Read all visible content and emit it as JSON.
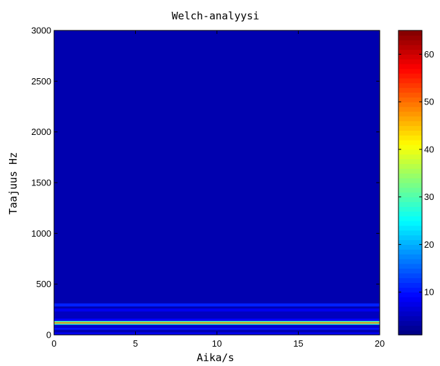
{
  "chart_data": {
    "type": "heatmap",
    "title": "Welch-analyysi",
    "xlabel": "Aika/s",
    "ylabel": "Taajuus Hz",
    "xlim": [
      0,
      20
    ],
    "ylim": [
      0,
      3000
    ],
    "x_ticks": [
      0,
      5,
      10,
      15,
      20
    ],
    "y_ticks": [
      0,
      500,
      1000,
      1500,
      2000,
      2500,
      3000
    ],
    "colormap": "jet",
    "colorbar": {
      "range": [
        1,
        65
      ],
      "ticks": [
        10,
        20,
        30,
        40,
        50,
        60
      ]
    },
    "background_level": 4,
    "frequency_bands": [
      {
        "freq_range": [
          0,
          25
        ],
        "level": 8
      },
      {
        "freq_range": [
          50,
          70
        ],
        "level": 10
      },
      {
        "freq_range": [
          70,
          100
        ],
        "level": 6
      },
      {
        "freq_range": [
          100,
          112
        ],
        "level": 28
      },
      {
        "freq_range": [
          112,
          125
        ],
        "level": 48
      },
      {
        "freq_range": [
          125,
          138
        ],
        "level": 30
      },
      {
        "freq_range": [
          138,
          160
        ],
        "level": 9
      },
      {
        "freq_range": [
          160,
          230
        ],
        "level": 5
      },
      {
        "freq_range": [
          230,
          260
        ],
        "level": 8
      },
      {
        "freq_range": [
          280,
          310
        ],
        "level": 11
      }
    ]
  }
}
